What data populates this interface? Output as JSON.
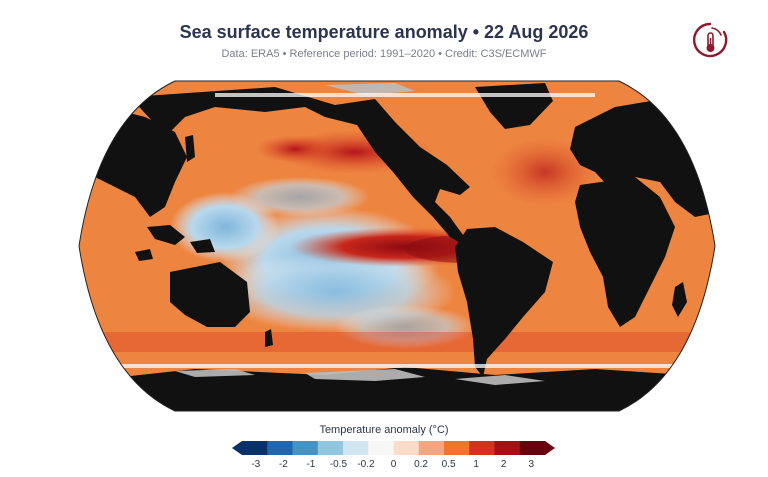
{
  "title": "Sea surface temperature anomaly • 22 Aug 2026",
  "subtitle": "Data: ERA5 • Reference period: 1991–2020 • Credit: C3S/ECMWF",
  "logo_icon": "thermometer-globe-icon",
  "colorbar": {
    "title": "Temperature anomaly (°C)",
    "ticks": [
      "-3",
      "-2",
      "-1",
      "-0.5",
      "-0.2",
      "0",
      "0.2",
      "0.5",
      "1",
      "2",
      "3"
    ],
    "colors": [
      "#08306b",
      "#2166ac",
      "#4393c3",
      "#92c5de",
      "#d1e5f0",
      "#f7f7f7",
      "#fddbc7",
      "#f4a582",
      "#f0742b",
      "#d6301f",
      "#a50f15",
      "#67000d"
    ]
  },
  "map": {
    "projection": "Robinson",
    "land_color": "#111111",
    "ice_color": "#8a8a8a"
  }
}
